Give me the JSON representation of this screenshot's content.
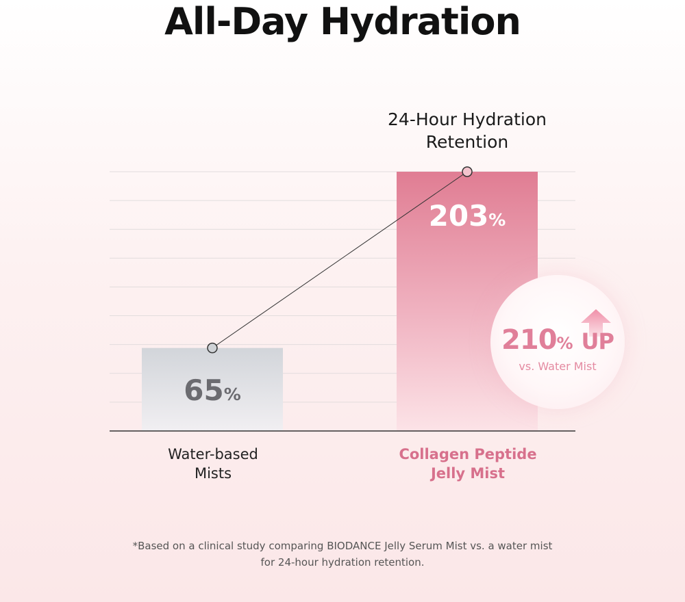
{
  "title": "All-Day Hydration",
  "chart_data": {
    "type": "bar",
    "title": "24-Hour Hydration\nRetention",
    "categories": [
      "Water-based\nMists",
      "Collagen Peptide\nJelly Mist"
    ],
    "values": [
      65,
      203
    ],
    "value_labels": [
      {
        "number": "65",
        "unit": "%"
      },
      {
        "number": "203",
        "unit": "%"
      }
    ],
    "ylim": [
      0,
      203
    ],
    "grid": true,
    "colors": {
      "water": "#d3d6db",
      "collagen": "#e07f95",
      "accent_text": "#d7708c"
    }
  },
  "badge": {
    "value": "210",
    "unit": "%",
    "suffix": "UP",
    "caption": "vs. Water Mist"
  },
  "footnote": "*Based on a clinical study comparing BIODANCE Jelly Serum Mist vs. a water mist\nfor 24-hour hydration retention."
}
